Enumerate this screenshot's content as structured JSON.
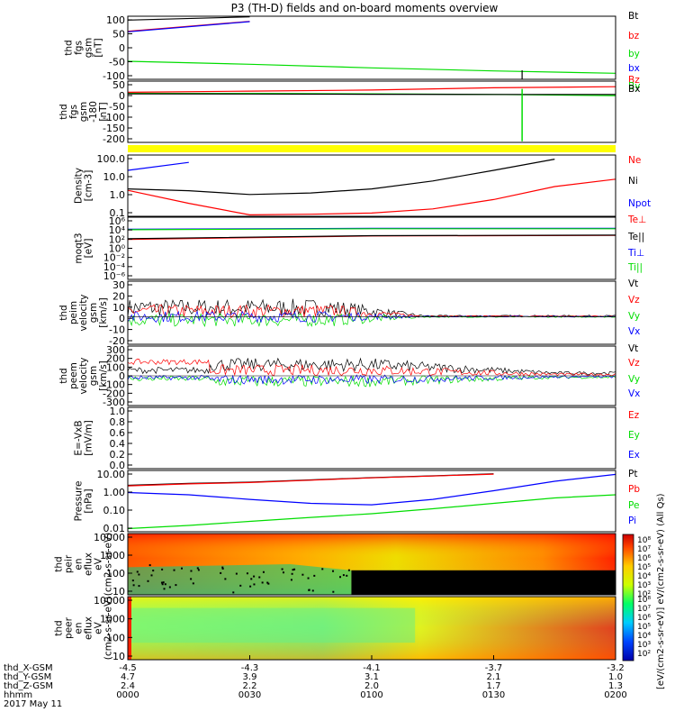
{
  "title": "P3 (TH-D) fields and on-board moments overview",
  "time_labels": [
    "0000",
    "0030",
    "0100",
    "0130",
    "0200"
  ],
  "ephemeris": {
    "rows": [
      {
        "label": "thd_X-GSM",
        "values": [
          "-4.5",
          "-4.3",
          "-4.1",
          "-3.7",
          "-3.2"
        ]
      },
      {
        "label": "thd_Y-GSM",
        "values": [
          "4.7",
          "3.9",
          "3.1",
          "2.1",
          "1.0"
        ]
      },
      {
        "label": "thd_Z-GSM",
        "values": [
          "2.4",
          "2.2",
          "2.0",
          "1.7",
          "1.3"
        ]
      }
    ],
    "hhmm_label": "hhmm",
    "date_label": "2017 May 11"
  },
  "colorbar": {
    "label": "[eV/(cm2-s-sr-eV)] eV/(cm2-s-sr-eV) (All Qs)",
    "top_ticks": [
      "10⁸",
      "10⁷",
      "10⁶",
      "10⁵",
      "10⁴",
      "10³",
      "10²"
    ],
    "bottom_ticks": [
      "10⁸",
      "10⁷",
      "10⁶",
      "10⁵",
      "10⁴",
      "10³",
      "10²"
    ]
  },
  "colors": {
    "black": "#000000",
    "red": "#ff0000",
    "green": "#00dd00",
    "blue": "#0000ff",
    "yellow": "#ffff00"
  },
  "chart_data": [
    {
      "id": "p1",
      "type": "line",
      "ylabel": "thd fgs gsm [nT]",
      "yticks": [
        "100",
        "50",
        "0",
        "-50",
        "-100"
      ],
      "ylim": [
        -100,
        110
      ],
      "series": [
        {
          "name": "Bt",
          "color": "black"
        },
        {
          "name": "bz",
          "color": "red"
        },
        {
          "name": "by",
          "color": "green"
        },
        {
          "name": "bx",
          "color": "blue"
        }
      ],
      "x": [
        0,
        30,
        60,
        90,
        120
      ],
      "values": {
        "Bt": [
          97,
          108,
          null,
          null,
          null
        ],
        "bz": [
          60,
          93,
          null,
          null,
          null
        ],
        "by": [
          -40,
          -50,
          -62,
          -72,
          -80
        ],
        "bx": [
          58,
          92,
          null,
          null,
          null
        ]
      }
    },
    {
      "id": "p2",
      "type": "line",
      "ylabel": "thd fgs gsm -180 [nT]",
      "yticks": [
        "50",
        "0",
        "-50",
        "-100",
        "-150",
        "-200"
      ],
      "ylim": [
        -220,
        55
      ],
      "series": [
        {
          "name": "Bz",
          "color": "red"
        },
        {
          "name": "By",
          "color": "green"
        },
        {
          "name": "Bx",
          "color": "black"
        }
      ],
      "x": [
        0,
        30,
        60,
        90,
        120
      ],
      "values": {
        "Bz": [
          5,
          10,
          15,
          25,
          30
        ],
        "By": [
          0,
          0,
          -2,
          -5,
          -10
        ],
        "Bx": [
          -2,
          -3,
          -4,
          -5,
          -5
        ]
      }
    },
    {
      "id": "p3",
      "type": "line",
      "ylabel": "Density [cm-3]",
      "yticks": [
        "100.0",
        "10.0",
        "1.0",
        "0.1"
      ],
      "scale": "log",
      "ylim": [
        0.1,
        200
      ],
      "series": [
        {
          "name": "Ne",
          "color": "red"
        },
        {
          "name": "Ni",
          "color": "black"
        },
        {
          "name": "Npot",
          "color": "blue"
        }
      ],
      "x": [
        0,
        15,
        30,
        45,
        60,
        75,
        90,
        105,
        120
      ],
      "values": {
        "Ne": [
          2.5,
          0.5,
          0.12,
          0.13,
          0.15,
          0.25,
          0.8,
          4,
          10
        ],
        "Ni": [
          3,
          2.4,
          1.5,
          1.8,
          3,
          8,
          30,
          120,
          null
        ],
        "Npot": [
          30,
          80,
          null,
          null,
          null,
          null,
          null,
          null,
          null
        ]
      }
    },
    {
      "id": "p4",
      "type": "line",
      "ylabel": "moqt3 [eV]",
      "yticks": [
        "10⁶",
        "10⁴",
        "10²",
        "10⁰",
        "10⁻²",
        "10⁻⁴",
        "10⁻⁶"
      ],
      "scale": "log",
      "series": [
        {
          "name": "Te⊥",
          "color": "red"
        },
        {
          "name": "Te||",
          "color": "black"
        },
        {
          "name": "Ti⊥",
          "color": "blue"
        },
        {
          "name": "Ti||",
          "color": "green"
        }
      ],
      "x": [
        0,
        60,
        120
      ],
      "values": {
        "Te⊥": [
          100,
          600,
          800
        ],
        "Te||": [
          150,
          700,
          900
        ],
        "Ti⊥": [
          20000,
          30000,
          30000
        ],
        "Ti||": [
          15000,
          25000,
          25000
        ]
      }
    },
    {
      "id": "p5",
      "type": "line",
      "ylabel": "thd peim velocity gsm [km/s]",
      "yticks": [
        "30",
        "20",
        "10",
        "0",
        "-10",
        "-20"
      ],
      "ylim": [
        -25,
        32
      ],
      "series": [
        {
          "name": "Vt",
          "color": "black"
        },
        {
          "name": "Vz",
          "color": "red"
        },
        {
          "name": "Vy",
          "color": "green"
        },
        {
          "name": "Vx",
          "color": "blue"
        }
      ]
    },
    {
      "id": "p6",
      "type": "line",
      "ylabel": "thd peem velocity gsm [km/s]",
      "yticks": [
        "300",
        "200",
        "100",
        "0",
        "-100",
        "-200",
        "-300"
      ],
      "ylim": [
        -320,
        320
      ],
      "series": [
        {
          "name": "Vt",
          "color": "black"
        },
        {
          "name": "Vz",
          "color": "red"
        },
        {
          "name": "Vy",
          "color": "green"
        },
        {
          "name": "Vx",
          "color": "blue"
        }
      ]
    },
    {
      "id": "p7",
      "type": "line",
      "ylabel": "E=-VxB [mV/m]",
      "yticks": [
        "1.0",
        "0.8",
        "0.6",
        "0.4",
        "0.2",
        "0.0"
      ],
      "ylim": [
        0,
        1
      ],
      "series": [
        {
          "name": "Ez",
          "color": "red"
        },
        {
          "name": "Ey",
          "color": "green"
        },
        {
          "name": "Ex",
          "color": "blue"
        }
      ]
    },
    {
      "id": "p8",
      "type": "line",
      "ylabel": "Pressure [nPa]",
      "yticks": [
        "10.00",
        "1.00",
        "0.10",
        "0.01"
      ],
      "scale": "log",
      "ylim": [
        0.008,
        20
      ],
      "series": [
        {
          "name": "Pt",
          "color": "black"
        },
        {
          "name": "Pb",
          "color": "red"
        },
        {
          "name": "Pe",
          "color": "green"
        },
        {
          "name": "Pi",
          "color": "blue"
        }
      ],
      "x": [
        0,
        15,
        30,
        45,
        60,
        75,
        90,
        105,
        120
      ],
      "values": {
        "Pt": [
          3,
          3.8,
          4.5,
          6,
          8,
          10,
          13,
          null,
          null
        ],
        "Pb": [
          2.8,
          3.6,
          4.3,
          5.8,
          7.8,
          9.8,
          12.5,
          null,
          null
        ],
        "Pe": [
          0.012,
          0.018,
          0.03,
          0.05,
          0.08,
          0.15,
          0.3,
          0.6,
          0.9
        ],
        "Pi": [
          1.2,
          0.9,
          0.5,
          0.3,
          0.25,
          0.5,
          1.5,
          5,
          12
        ]
      }
    },
    {
      "id": "p9",
      "type": "heatmap",
      "ylabel": "thd peir en eflux eV (cm2-s-sr-eV)",
      "yticks": [
        "10000",
        "1000",
        "100",
        "10"
      ]
    },
    {
      "id": "p10",
      "type": "heatmap",
      "ylabel": "thd peer en eflux eV (cm2-s-sr-eV)",
      "yticks": [
        "10000",
        "1000",
        "100",
        "10"
      ]
    }
  ]
}
